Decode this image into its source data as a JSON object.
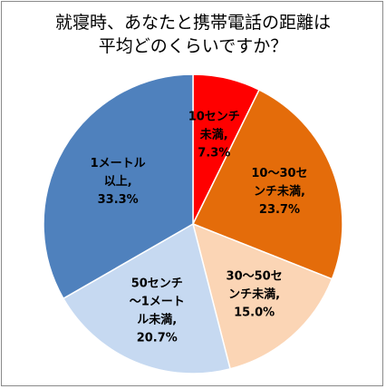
{
  "chart_data": {
    "type": "pie",
    "title_lines": [
      "就寝時、あなたと携帯電話の距離は",
      "平均どのくらいですか？"
    ],
    "slices": [
      {
        "label_lines": [
          "10センチ",
          "未満,",
          "7.3%"
        ],
        "value": 7.3,
        "color": "#ff0000"
      },
      {
        "label_lines": [
          "10〜30セ",
          "ンチ未満,",
          "23.7%"
        ],
        "value": 23.7,
        "color": "#e46c0a"
      },
      {
        "label_lines": [
          "30〜50セ",
          "ンチ未満,",
          "15.0%"
        ],
        "value": 15.0,
        "color": "#fbd5b5"
      },
      {
        "label_lines": [
          "50センチ",
          "〜1メート",
          "ル未満,",
          "20.7%"
        ],
        "value": 20.7,
        "color": "#c6d9f1"
      },
      {
        "label_lines": [
          "1メートル",
          "以上,",
          "33.3%"
        ],
        "value": 33.3,
        "color": "#4f81bd"
      }
    ],
    "start_angle_deg": 0,
    "direction": "clockwise"
  }
}
